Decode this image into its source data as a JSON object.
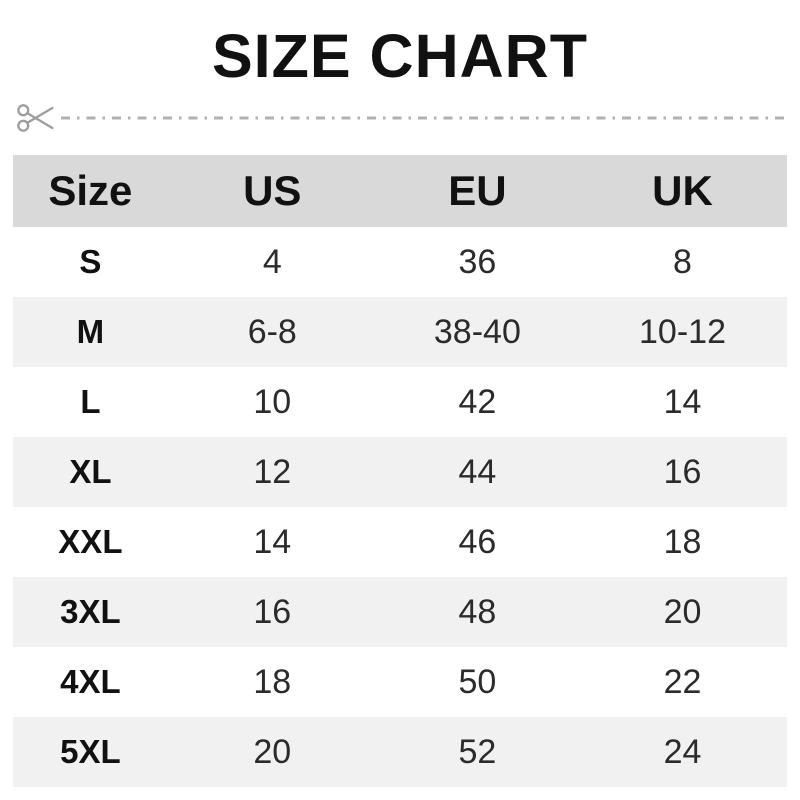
{
  "page_title": "SIZE CHART",
  "divider": {
    "icon": "scissors-icon",
    "line_style": "dash-dot",
    "line_color": "#b0b0b0",
    "icon_color": "#9e9e9e"
  },
  "chart_data": {
    "type": "table",
    "title": "SIZE CHART",
    "columns": [
      "Size",
      "US",
      "EU",
      "UK"
    ],
    "rows": [
      [
        "S",
        "4",
        "36",
        "8"
      ],
      [
        "M",
        "6-8",
        "38-40",
        "10-12"
      ],
      [
        "L",
        "10",
        "42",
        "14"
      ],
      [
        "XL",
        "12",
        "44",
        "16"
      ],
      [
        "XXL",
        "14",
        "46",
        "18"
      ],
      [
        "3XL",
        "16",
        "48",
        "20"
      ],
      [
        "4XL",
        "18",
        "50",
        "22"
      ],
      [
        "5XL",
        "20",
        "52",
        "24"
      ]
    ],
    "layout": {
      "striped": true,
      "header_bg": "#d9d9d9",
      "stripe_bg": "#f1f1f1",
      "row_bg": "#ffffff",
      "text_color": "#2b2b2b",
      "header_text_color": "#111111"
    }
  }
}
